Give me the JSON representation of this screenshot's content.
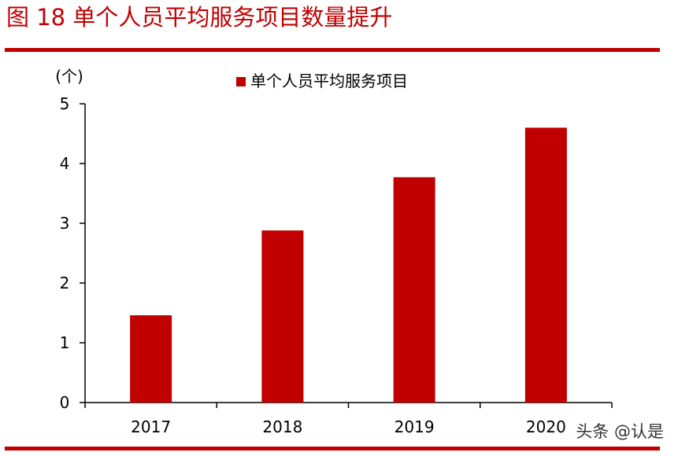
{
  "figure": {
    "title": "图 18   单个人员平均服务项目数量提升",
    "watermark": "头条 @认是"
  },
  "colors": {
    "accent": "#c00000",
    "bar": "#c00000",
    "axis": "#000000"
  },
  "chart_data": {
    "type": "bar",
    "title": "",
    "xlabel": "",
    "ylabel": "(个)",
    "categories": [
      "2017",
      "2018",
      "2019",
      "2020"
    ],
    "series": [
      {
        "name": "单个人员平均服务项目",
        "values": [
          1.46,
          2.88,
          3.77,
          4.6
        ]
      }
    ],
    "ylim": [
      0,
      5
    ],
    "yticks": [
      0,
      1,
      2,
      3,
      4,
      5
    ],
    "grid": false,
    "legend": "top-center"
  }
}
